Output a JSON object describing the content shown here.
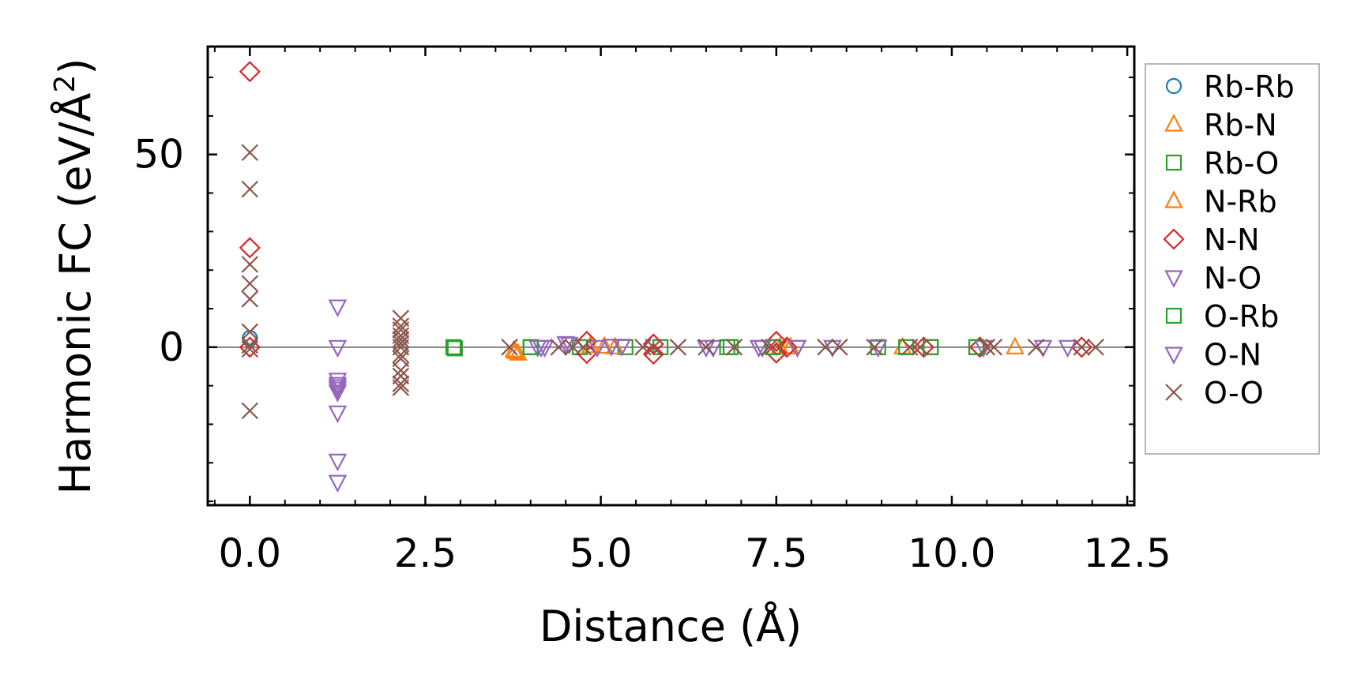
{
  "chart_data": {
    "type": "scatter",
    "title": "",
    "xlabel": "Distance (Å)",
    "ylabel": "Harmonic FC (eV/Å²)",
    "ylabel_main": "Harmonic FC (eV/Å",
    "ylabel_sup": "2",
    "ylabel_close": ")",
    "xlim": [
      -0.6,
      12.6
    ],
    "ylim": [
      -41,
      78
    ],
    "xticks": [
      0.0,
      2.5,
      5.0,
      7.5,
      10.0,
      12.5
    ],
    "xtick_labels": [
      "0.0",
      "2.5",
      "5.0",
      "7.5",
      "10.0",
      "12.5"
    ],
    "yticks": [
      0,
      50
    ],
    "ytick_labels": [
      "0",
      "50"
    ],
    "grid": false,
    "zero_line": true,
    "legend_position": "right",
    "series": [
      {
        "name": "Rb-Rb",
        "color": "#1f77b4",
        "marker": "circle",
        "x": [
          0.0
        ],
        "y": [
          2.4
        ]
      },
      {
        "name": "Rb-N",
        "color": "#ff7f0e",
        "marker": "triangle-up",
        "x": [
          3.78,
          3.82,
          4.85,
          5.05,
          7.55,
          7.7,
          9.3,
          10.9
        ],
        "y": [
          -1.2,
          -1.6,
          0.3,
          0.2,
          0.0,
          0.0,
          0.0,
          0.0
        ]
      },
      {
        "name": "Rb-O",
        "color": "#2ca02c",
        "marker": "square",
        "x": [
          2.9,
          2.92,
          4.0,
          4.7,
          5.35,
          5.85,
          6.85,
          7.45,
          8.95,
          9.35,
          9.7,
          10.35
        ],
        "y": [
          0.0,
          -0.3,
          0.0,
          0.0,
          0.0,
          0.0,
          0.0,
          0.0,
          0.0,
          0.0,
          0.0,
          0.0
        ]
      },
      {
        "name": "N-Rb",
        "color": "#ff7f0e",
        "marker": "triangle-up",
        "x": [
          3.76,
          5.2,
          7.65
        ],
        "y": [
          -0.8,
          0.0,
          0.0
        ]
      },
      {
        "name": "N-N",
        "color": "#d62728",
        "marker": "diamond",
        "x": [
          0.0,
          0.0,
          0.0,
          4.8,
          4.8,
          5.75,
          5.75,
          7.5,
          7.5,
          7.65,
          9.6,
          10.4,
          11.85
        ],
        "y": [
          71.5,
          25.8,
          0.0,
          1.5,
          -1.6,
          0.8,
          -1.8,
          1.5,
          -1.5,
          0.0,
          0.0,
          0.0,
          0.0
        ]
      },
      {
        "name": "N-O",
        "color": "#9467bd",
        "marker": "triangle-down",
        "x": [
          1.25,
          1.25,
          1.25,
          1.25,
          1.25,
          1.25,
          1.25,
          1.25,
          1.25,
          1.25,
          4.1,
          4.2,
          4.5,
          5.3,
          6.6,
          7.3,
          7.8,
          8.3,
          10.45
        ],
        "y": [
          10.5,
          0.0,
          -8.5,
          -9.6,
          -10.8,
          -11.6,
          -17.0,
          -29.5,
          -35.0,
          -10.2,
          0.0,
          0.0,
          1.0,
          0.3,
          0.0,
          0.0,
          0.0,
          0.0,
          0.0
        ]
      },
      {
        "name": "O-Rb",
        "color": "#2ca02c",
        "marker": "square",
        "x": [
          4.0,
          6.8,
          7.45,
          9.7,
          10.35
        ],
        "y": [
          0.0,
          0.0,
          0.0,
          0.0,
          0.0
        ]
      },
      {
        "name": "O-N",
        "color": "#9467bd",
        "marker": "triangle-down",
        "x": [
          4.15,
          4.55,
          4.95,
          5.15,
          6.5,
          7.25,
          7.8,
          8.95,
          11.3,
          11.65
        ],
        "y": [
          0.0,
          0.8,
          0.0,
          0.3,
          0.0,
          0.0,
          0.0,
          0.0,
          0.0,
          0.0
        ]
      },
      {
        "name": "O-O",
        "color": "#8c564b",
        "marker": "x",
        "x": [
          0.0,
          0.0,
          0.0,
          0.0,
          0.0,
          0.0,
          0.0,
          0.0,
          0.0,
          2.15,
          2.15,
          2.15,
          2.15,
          2.15,
          2.15,
          2.15,
          2.15,
          2.15,
          2.15,
          2.15,
          2.15,
          2.15,
          3.7,
          4.4,
          4.6,
          4.75,
          5.6,
          5.75,
          6.1,
          6.5,
          6.9,
          7.4,
          8.2,
          8.4,
          8.9,
          9.4,
          9.55,
          10.5,
          10.6,
          11.2,
          11.85,
          12.05
        ],
        "y": [
          50.5,
          41.0,
          21.5,
          16.5,
          12.5,
          4.0,
          0.5,
          -0.5,
          -16.5,
          7.5,
          5.5,
          4.5,
          3.0,
          2.0,
          1.0,
          0.0,
          -2.0,
          -3.0,
          -6.0,
          -7.5,
          -9.5,
          -10.5,
          0.0,
          0.0,
          0.0,
          0.0,
          0.0,
          0.0,
          0.0,
          0.0,
          0.0,
          0.0,
          0.0,
          0.0,
          0.0,
          0.0,
          0.0,
          0.0,
          0.0,
          0.0,
          0.0,
          0.0
        ]
      }
    ]
  }
}
